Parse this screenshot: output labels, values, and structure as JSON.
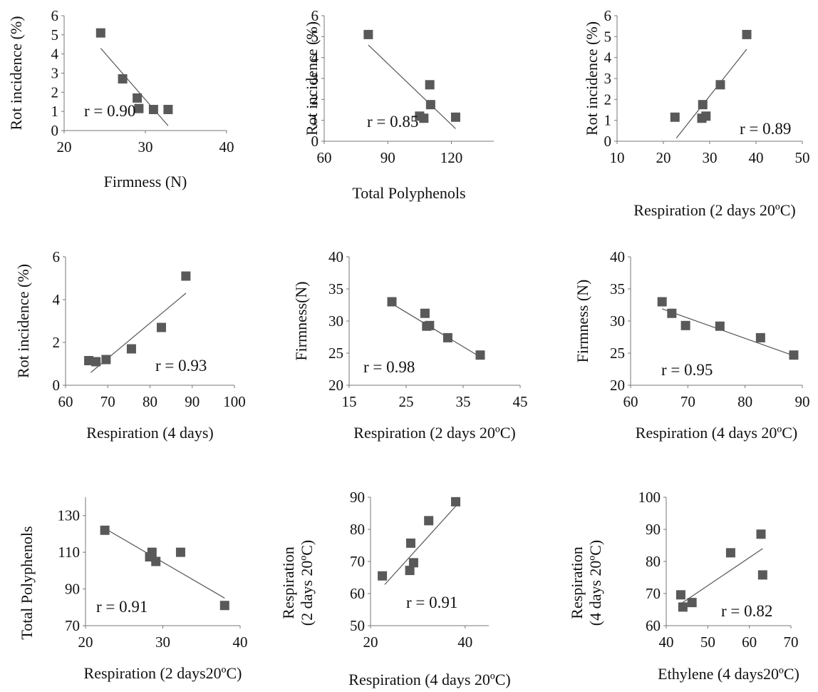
{
  "chart_data": [
    {
      "type": "scatter",
      "xlabel": "Firmness (N)",
      "ylabel": "Rot incidence (%)",
      "xlim": [
        20,
        40
      ],
      "xticks": [
        20,
        30,
        40
      ],
      "ylim": [
        0,
        6
      ],
      "yticks": [
        0,
        1,
        2,
        3,
        4,
        5,
        6
      ],
      "annotation": "r = 0.90",
      "points": [
        [
          24.5,
          5.1
        ],
        [
          27.2,
          2.7
        ],
        [
          29.0,
          1.7
        ],
        [
          29.2,
          1.15
        ],
        [
          31.0,
          1.1
        ],
        [
          32.8,
          1.1
        ]
      ],
      "trendline": [
        [
          24.5,
          4.3
        ],
        [
          32.8,
          0.25
        ]
      ]
    },
    {
      "type": "scatter",
      "xlabel": "Total Polyphenols",
      "ylabel": "Rot incidence  (%)",
      "xlim": [
        60,
        140
      ],
      "xticks": [
        60,
        90,
        120
      ],
      "ylim": [
        0,
        6
      ],
      "yticks": [
        0,
        1,
        2,
        3,
        4,
        5,
        6
      ],
      "annotation": "r = 0.85",
      "points": [
        [
          80.8,
          5.1
        ],
        [
          105.0,
          1.2
        ],
        [
          107.0,
          1.1
        ],
        [
          109.8,
          2.7
        ],
        [
          110.2,
          1.75
        ],
        [
          122.0,
          1.15
        ]
      ],
      "trendline": [
        [
          80.8,
          4.6
        ],
        [
          122.0,
          0.6
        ]
      ]
    },
    {
      "type": "scatter",
      "xlabel": "Respiration (2 days  20ºC)",
      "ylabel": "Rot incidence (%)",
      "xlim": [
        10,
        50
      ],
      "xticks": [
        10,
        20,
        30,
        40,
        50
      ],
      "ylim": [
        0,
        6
      ],
      "yticks": [
        0,
        1,
        2,
        3,
        4,
        5,
        6
      ],
      "annotation": "r = 0.89",
      "points": [
        [
          22.5,
          1.15
        ],
        [
          28.3,
          1.1
        ],
        [
          28.5,
          1.75
        ],
        [
          29.2,
          1.2
        ],
        [
          32.3,
          2.7
        ],
        [
          38.0,
          5.1
        ]
      ],
      "trendline": [
        [
          22.8,
          0.15
        ],
        [
          38.0,
          4.4
        ]
      ]
    },
    {
      "type": "scatter",
      "xlabel": "Respiration (4 days)",
      "ylabel": "Rot incidence (%)",
      "xlim": [
        60,
        100
      ],
      "xticks": [
        60,
        70,
        80,
        90,
        100
      ],
      "ylim": [
        0,
        6
      ],
      "yticks": [
        0,
        2,
        4,
        6
      ],
      "annotation": "r = 0.93",
      "points": [
        [
          65.5,
          1.15
        ],
        [
          67.2,
          1.1
        ],
        [
          69.6,
          1.2
        ],
        [
          75.6,
          1.7
        ],
        [
          82.7,
          2.7
        ],
        [
          88.5,
          5.1
        ]
      ],
      "trendline": [
        [
          66.0,
          0.6
        ],
        [
          88.5,
          4.3
        ]
      ]
    },
    {
      "type": "scatter",
      "xlabel": "Respiration  (2 days  20ºC)",
      "ylabel": "Firmness(N)",
      "xlim": [
        15,
        45
      ],
      "xticks": [
        15,
        25,
        35,
        45
      ],
      "ylim": [
        20,
        40
      ],
      "yticks": [
        20,
        25,
        30,
        35,
        40
      ],
      "annotation": "r = 0.98",
      "points": [
        [
          22.5,
          33.0
        ],
        [
          28.3,
          31.2
        ],
        [
          28.6,
          29.2
        ],
        [
          29.1,
          29.3
        ],
        [
          32.3,
          27.4
        ],
        [
          38.0,
          24.7
        ]
      ],
      "trendline": [
        [
          22.5,
          32.7
        ],
        [
          38.0,
          24.4
        ]
      ]
    },
    {
      "type": "scatter",
      "xlabel": "Respiration (4 days  20ºC)",
      "ylabel": "Firmness (N)",
      "xlim": [
        60,
        90
      ],
      "xticks": [
        60,
        70,
        80,
        90
      ],
      "ylim": [
        20,
        40
      ],
      "yticks": [
        20,
        25,
        30,
        35,
        40
      ],
      "annotation": "r = 0.95",
      "points": [
        [
          65.5,
          33.0
        ],
        [
          67.2,
          31.2
        ],
        [
          69.6,
          29.3
        ],
        [
          75.6,
          29.2
        ],
        [
          82.7,
          27.4
        ],
        [
          88.5,
          24.7
        ]
      ],
      "trendline": [
        [
          65.5,
          31.9
        ],
        [
          88.5,
          24.6
        ]
      ]
    },
    {
      "type": "scatter",
      "xlabel": "Respiration (2 days20ºC)",
      "ylabel": "Total Polyphenols",
      "xlim": [
        20,
        40
      ],
      "xticks": [
        20,
        30,
        40
      ],
      "ylim": [
        70,
        140
      ],
      "yticks": [
        70,
        90,
        110,
        130
      ],
      "annotation": "r = 0.91",
      "points": [
        [
          22.5,
          122.0
        ],
        [
          28.3,
          107.5
        ],
        [
          28.6,
          110.0
        ],
        [
          29.1,
          105.0
        ],
        [
          32.3,
          110.0
        ],
        [
          38.0,
          81.0
        ]
      ],
      "trendline": [
        [
          22.5,
          123.0
        ],
        [
          38.0,
          85.0
        ]
      ]
    },
    {
      "type": "scatter",
      "xlabel": "Respiration (4 days  20ºC)",
      "ylabel": "Respiration\n(2 days  20ºC)",
      "xlim": [
        20,
        45
      ],
      "xticks": [
        20,
        40
      ],
      "ylim": [
        50,
        90
      ],
      "yticks": [
        50,
        60,
        70,
        80,
        90
      ],
      "annotation": "r = 0.91",
      "points": [
        [
          22.5,
          65.5
        ],
        [
          28.3,
          67.2
        ],
        [
          28.5,
          75.7
        ],
        [
          29.1,
          69.6
        ],
        [
          32.3,
          82.7
        ],
        [
          38.0,
          88.6
        ]
      ],
      "trendline": [
        [
          23.0,
          62.8
        ],
        [
          38.0,
          87.2
        ]
      ]
    },
    {
      "type": "scatter",
      "xlabel": "Ethylene (4 days20ºC)",
      "ylabel": "Respiration\n(4 days  20ºC)",
      "xlim": [
        40,
        70
      ],
      "xticks": [
        40,
        50,
        60,
        70
      ],
      "ylim": [
        60,
        100
      ],
      "yticks": [
        60,
        70,
        80,
        90,
        100
      ],
      "annotation": "r = 0.82",
      "points": [
        [
          43.5,
          69.6
        ],
        [
          44.0,
          65.8
        ],
        [
          46.2,
          67.2
        ],
        [
          55.5,
          82.7
        ],
        [
          62.8,
          88.5
        ],
        [
          63.2,
          75.8
        ]
      ],
      "trendline": [
        [
          43.5,
          66.8
        ],
        [
          63.2,
          84.0
        ]
      ]
    }
  ]
}
